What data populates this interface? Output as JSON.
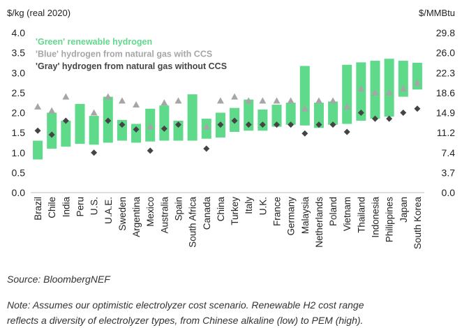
{
  "chart_data": {
    "type": "bar",
    "ylabel_left": "$/kg (real 2020)",
    "ylabel_right": "$/MMBtu",
    "ylim": [
      0,
      4.0
    ],
    "y_ticks": [
      "0.0",
      "0.5",
      "1.0",
      "1.5",
      "2.0",
      "2.5",
      "3.0",
      "3.5",
      "4.0"
    ],
    "y_right_ticks": [
      "0.0",
      "3.7",
      "7.4",
      "11.2",
      "14.9",
      "18.6",
      "22.3",
      "26.0",
      "29.8"
    ],
    "legend": [
      {
        "label": "'Green' renewable hydrogen",
        "color": "#5fd98a"
      },
      {
        "label": "'Blue' hydrogen from natural gas with CCS",
        "color": "#a6a6a6"
      },
      {
        "label": "'Gray' hydrogen from natural gas without CCS",
        "color": "#444444"
      }
    ],
    "legend_position": "top-left",
    "grid": false,
    "categories": [
      "Brazil",
      "Chile",
      "India",
      "Peru",
      "U.S.",
      "U.A.E.",
      "Sweden",
      "Argentina",
      "Mexico",
      "Australia",
      "Spain",
      "South Africa",
      "Canada",
      "China",
      "Turkey",
      "Italy",
      "U.K.",
      "France",
      "Germany",
      "Malaysia",
      "Netherlands",
      "Poland",
      "Vietnam",
      "Thailand",
      "Indonesia",
      "Philippines",
      "Japan",
      "South Korea"
    ],
    "series": [
      {
        "name": "'Green' renewable hydrogen",
        "kind": "range",
        "color": "#5fd98a",
        "low": [
          0.83,
          1.1,
          1.15,
          1.22,
          1.2,
          1.25,
          1.3,
          1.25,
          1.28,
          1.3,
          1.3,
          1.3,
          1.35,
          1.38,
          1.52,
          1.55,
          1.55,
          1.65,
          1.7,
          1.68,
          1.62,
          1.7,
          1.72,
          1.8,
          1.85,
          1.9,
          2.4,
          2.58
        ],
        "high": [
          1.3,
          2.0,
          1.8,
          2.22,
          1.92,
          2.4,
          1.82,
          1.72,
          2.1,
          2.18,
          1.8,
          2.46,
          1.85,
          2.0,
          2.12,
          2.33,
          2.08,
          2.2,
          2.25,
          3.17,
          2.25,
          2.28,
          3.2,
          3.26,
          3.3,
          3.35,
          3.3,
          3.25
        ]
      },
      {
        "name": "'Blue' hydrogen from natural gas with CCS",
        "kind": "marker",
        "shape": "triangle",
        "color": "#a6a6a6",
        "values": [
          2.15,
          2.05,
          2.4,
          null,
          2.0,
          2.4,
          2.3,
          2.2,
          1.65,
          2.25,
          2.3,
          null,
          1.65,
          2.3,
          2.4,
          2.3,
          2.3,
          2.3,
          2.3,
          2.1,
          2.3,
          2.3,
          2.15,
          2.6,
          2.5,
          2.5,
          2.6,
          2.75
        ]
      },
      {
        "name": "'Gray' hydrogen from natural gas without CCS",
        "kind": "marker",
        "shape": "diamond",
        "color": "#444444",
        "values": [
          1.55,
          1.45,
          1.8,
          null,
          1.0,
          1.8,
          1.7,
          1.58,
          1.05,
          1.6,
          1.7,
          null,
          1.1,
          1.7,
          1.8,
          1.7,
          1.7,
          1.7,
          1.7,
          1.48,
          1.7,
          1.7,
          1.52,
          2.0,
          1.85,
          1.85,
          2.0,
          2.1
        ]
      }
    ]
  },
  "source_note": "Source: BloombergNEF",
  "footnote_line1": "Note: Assumes our optimistic electrolyzer cost scenario. Renewable H2 cost range",
  "footnote_line2": "reflects a diversity of electrolyzer types, from Chinese alkaline (low) to PEM (high)."
}
